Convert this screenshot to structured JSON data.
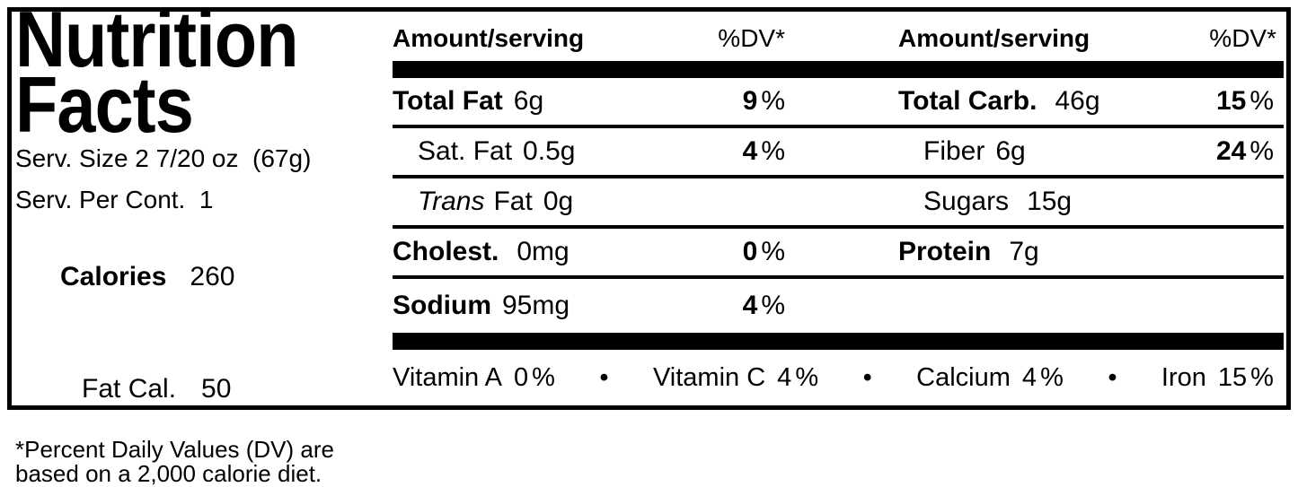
{
  "left_panel": {
    "title_line1": "Nutrition",
    "title_line2": "Facts",
    "serving_size": "Serv. Size 2 7/20 oz  (67g)",
    "servings_per_container": "Serv. Per Cont.  1",
    "calories": {
      "label": "Calories",
      "value": "260"
    },
    "fat_calories": {
      "label": "Fat Cal.",
      "value": "50"
    },
    "footnote_line1": "*Percent Daily Values (DV) are",
    "footnote_line2": "based on a 2,000 calorie diet."
  },
  "table": {
    "left_header": {
      "amount": "Amount/serving",
      "dv": "%DV*"
    },
    "right_header": {
      "amount": "Amount/serving",
      "dv": "%DV*"
    },
    "percent_sign": "%",
    "bullet": "•",
    "rows": [
      {
        "left": {
          "name": "Total Fat",
          "value": "6g",
          "dv": "9"
        },
        "right": {
          "name": "Total Carb.",
          "value": "46g",
          "dv": "15"
        }
      },
      {
        "left": {
          "name": "Sat. Fat",
          "value": "0.5g",
          "dv": "4"
        },
        "right": {
          "name": "Fiber",
          "value": "6g",
          "dv": "24"
        }
      },
      {
        "left": {
          "name_italic": "Trans",
          "name": "Fat",
          "value": "0g"
        },
        "right": {
          "name": "Sugars",
          "value": "15g"
        }
      },
      {
        "left": {
          "name": "Cholest.",
          "value": "0mg",
          "dv": "0"
        },
        "right": {
          "name": "Protein",
          "value": "7g"
        }
      },
      {
        "left": {
          "name": "Sodium",
          "value": "95mg",
          "dv": "4"
        }
      }
    ],
    "micronutrients": [
      {
        "name": "Vitamin A",
        "dv": "0"
      },
      {
        "name": "Vitamin C",
        "dv": "4"
      },
      {
        "name": "Calcium",
        "dv": "4"
      },
      {
        "name": "Iron",
        "dv": "15"
      }
    ]
  },
  "colors": {
    "ink": "#000000",
    "paper": "#ffffff"
  }
}
